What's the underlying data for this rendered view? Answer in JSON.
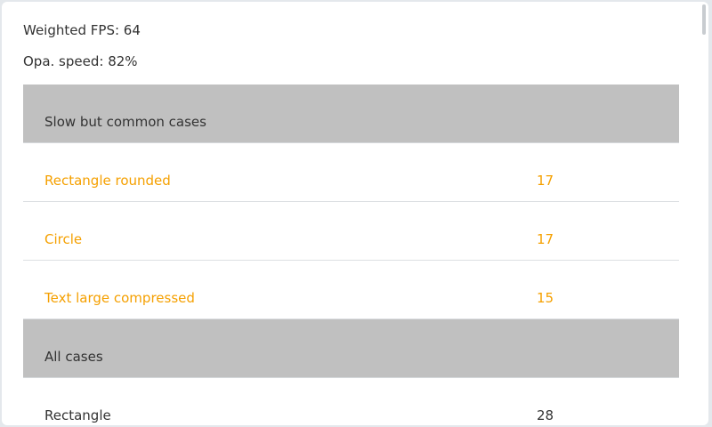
{
  "summary": {
    "weighted_fps": "Weighted FPS: 64",
    "opa_speed": "Opa. speed: 82%"
  },
  "colors": {
    "slow_text": "#f5a000",
    "header_bg": "#c0c0c0"
  },
  "table": {
    "sections": [
      {
        "title": "Slow but common cases",
        "rows": [
          {
            "name": "Rectangle rounded",
            "value": "17"
          },
          {
            "name": "Circle",
            "value": "17"
          },
          {
            "name": "Text large compressed",
            "value": "15"
          }
        ]
      },
      {
        "title": "All cases",
        "rows": [
          {
            "name": "Rectangle",
            "value": "28"
          }
        ]
      }
    ]
  }
}
